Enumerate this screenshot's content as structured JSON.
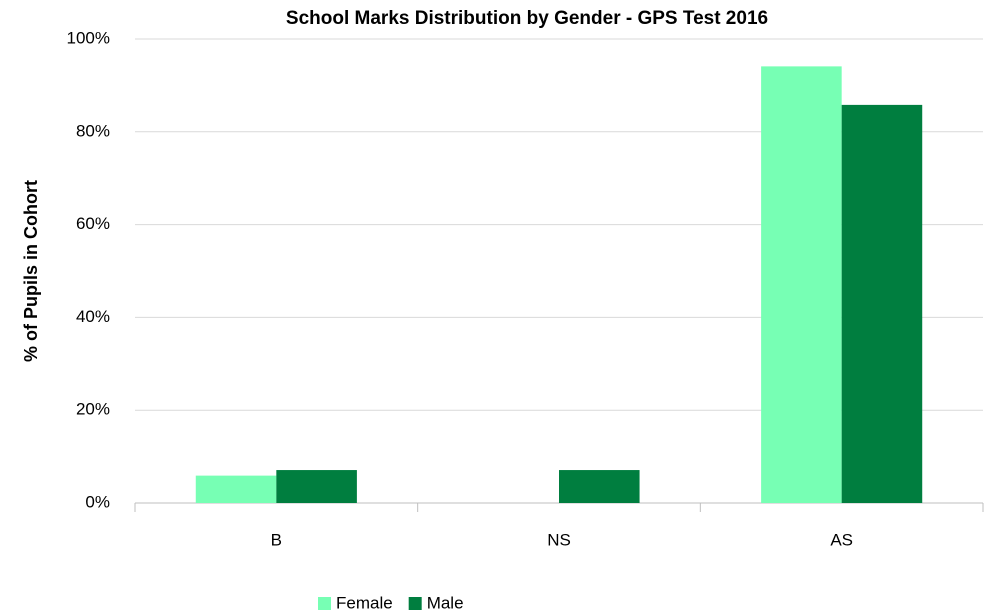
{
  "chart_data": {
    "type": "bar",
    "title": "School Marks Distribution by Gender - GPS Test 2016",
    "y_label": "% of Pupils in Cohort",
    "categories": [
      "B",
      "NS",
      "AS"
    ],
    "series": [
      {
        "name": "Female",
        "color": "#77ffb4",
        "values": [
          5.9,
          0,
          94.1
        ]
      },
      {
        "name": "Male",
        "color": "#007e3f",
        "values": [
          7.1,
          7.1,
          85.8
        ]
      }
    ],
    "ylim": [
      0,
      100
    ],
    "yticks": [
      {
        "value": 0,
        "label": "0%"
      },
      {
        "value": 20,
        "label": "20%"
      },
      {
        "value": 40,
        "label": "40%"
      },
      {
        "value": 60,
        "label": "60%"
      },
      {
        "value": 80,
        "label": "80%"
      },
      {
        "value": 100,
        "label": "100%"
      }
    ],
    "grid": true,
    "legend": "bottom"
  }
}
